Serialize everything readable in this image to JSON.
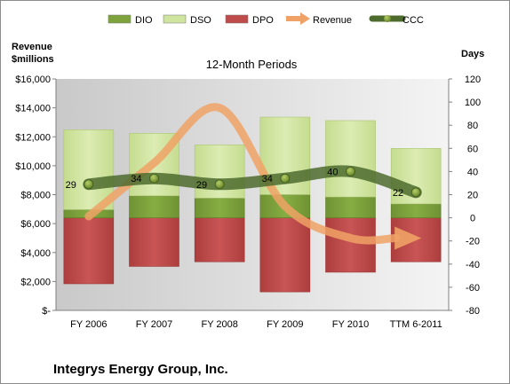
{
  "chart_data": {
    "type": "bar",
    "title": "12-Month Periods",
    "company": "Integrys Energy Group, Inc.",
    "y_left_label": [
      "Revenue",
      "$millions"
    ],
    "y_right_label": "Days",
    "categories": [
      "FY 2006",
      "FY 2007",
      "FY 2008",
      "FY 2009",
      "FY 2010",
      "TTM 6-2011"
    ],
    "y_left": {
      "min": 0,
      "max": 16000,
      "step": 2000,
      "tick_labels": [
        "$-",
        "$2,000",
        "$4,000",
        "$6,000",
        "$8,000",
        "$10,000",
        "$12,000",
        "$14,000",
        "$16,000"
      ]
    },
    "y_right": {
      "min": -80,
      "max": 120,
      "step": 20,
      "tick_labels": [
        "-80",
        "-60",
        "-40",
        "-20",
        "0",
        "20",
        "40",
        "60",
        "80",
        "100",
        "120"
      ]
    },
    "legend": {
      "position": "top",
      "entries": [
        {
          "name": "DIO",
          "kind": "bar",
          "color": "#7ea33c"
        },
        {
          "name": "DSO",
          "kind": "bar",
          "color": "#cfe49e"
        },
        {
          "name": "DPO",
          "kind": "bar",
          "color": "#bf4b4b"
        },
        {
          "name": "Revenue",
          "kind": "arrow",
          "color": "#f0a266"
        },
        {
          "name": "CCC",
          "kind": "line",
          "color": "#4e6b2e"
        }
      ]
    },
    "series": [
      {
        "name": "DIO",
        "axis": "right",
        "values": [
          7,
          19,
          17,
          20,
          18,
          12
        ]
      },
      {
        "name": "DSO",
        "axis": "right",
        "values": [
          69,
          54,
          46,
          67,
          66,
          48
        ]
      },
      {
        "name": "DPO",
        "axis": "right",
        "values": [
          -57,
          -42,
          -38,
          -64,
          -47,
          -38
        ]
      },
      {
        "name": "Revenue",
        "axis": "left",
        "values": [
          6500,
          10200,
          14000,
          7200,
          5000,
          5000
        ]
      },
      {
        "name": "CCC",
        "axis": "right",
        "values": [
          29,
          34,
          29,
          34,
          40,
          22
        ],
        "data_labels": [
          "29",
          "34",
          "29",
          "34",
          "40",
          "22"
        ]
      }
    ],
    "grid": false
  }
}
